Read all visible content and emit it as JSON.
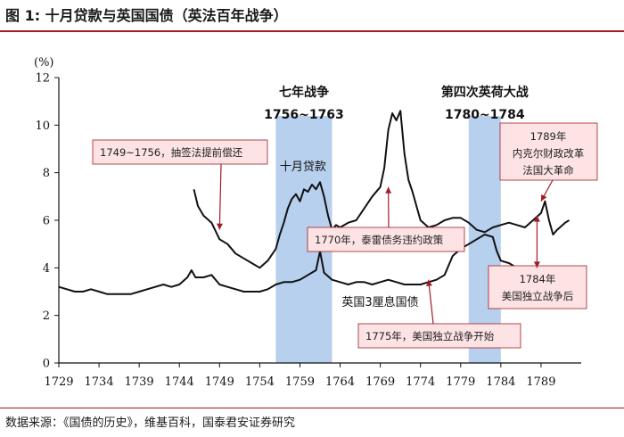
{
  "figure_title": "图 1:  十月贷款与英国国债（英法百年战争）",
  "source": "数据来源：《国债的历史》，维基百科，国泰君安证券研究",
  "colors": {
    "accent": "#a01d26",
    "band": "#aac8ea",
    "note_fill": "#fde3e4",
    "line": "#111111"
  },
  "chart_data": {
    "type": "line",
    "title": "",
    "xlabel": "",
    "ylabel": "(%)",
    "xlim": [
      1729,
      1794
    ],
    "ylim": [
      0,
      12
    ],
    "xticks": [
      1729,
      1734,
      1739,
      1744,
      1749,
      1754,
      1759,
      1764,
      1769,
      1774,
      1779,
      1784,
      1789
    ],
    "yticks": [
      0,
      2,
      4,
      6,
      8,
      10,
      12
    ],
    "war_periods": [
      {
        "name": "七年战争",
        "years": "1756~1763",
        "x0": 1756,
        "x1": 1763
      },
      {
        "name": "第四次英荷大战",
        "years": "1780~1784",
        "x0": 1780,
        "x1": 1784
      }
    ],
    "series": [
      {
        "name": "十月贷款",
        "x": [
          1745.8,
          1746.3,
          1747,
          1748,
          1749,
          1750,
          1751,
          1752,
          1753,
          1754,
          1755,
          1756,
          1756.5,
          1757,
          1757.5,
          1758,
          1758.5,
          1759,
          1759.5,
          1760,
          1760.5,
          1761,
          1761.5,
          1762,
          1762.5,
          1763,
          1763.5,
          1764,
          1765,
          1766,
          1767,
          1768,
          1769,
          1769.5,
          1770,
          1770.5,
          1771,
          1771.5,
          1772,
          1772.5,
          1773,
          1774,
          1775,
          1776,
          1777,
          1778,
          1779,
          1780,
          1781,
          1782,
          1783,
          1784,
          1785,
          1786,
          1787,
          1788,
          1789,
          1789.5,
          1790,
          1790.5,
          1791,
          1792,
          1792.5
        ],
        "values": [
          7.3,
          6.6,
          6.2,
          5.9,
          5.2,
          5.0,
          4.6,
          4.4,
          4.2,
          4.0,
          4.3,
          4.8,
          5.4,
          5.9,
          6.5,
          6.9,
          7.1,
          6.8,
          7.3,
          7.2,
          7.5,
          7.3,
          7.6,
          7.0,
          6.2,
          5.6,
          5.8,
          5.7,
          5.9,
          6.0,
          6.5,
          7.0,
          7.4,
          8.2,
          9.8,
          10.5,
          10.2,
          10.6,
          8.8,
          7.7,
          7.2,
          6.0,
          5.7,
          5.8,
          6.0,
          6.1,
          6.1,
          5.9,
          5.6,
          5.5,
          5.7,
          5.8,
          5.9,
          5.8,
          5.7,
          6.0,
          6.3,
          6.8,
          6.0,
          5.4,
          5.6,
          5.9,
          6.0
        ]
      },
      {
        "name": "英国3厘息国债",
        "x": [
          1729,
          1730,
          1731,
          1732,
          1733,
          1734,
          1735,
          1736,
          1737,
          1738,
          1739,
          1740,
          1741,
          1742,
          1743,
          1744,
          1745,
          1745.5,
          1746,
          1747,
          1748,
          1749,
          1750,
          1751,
          1752,
          1753,
          1754,
          1755,
          1756,
          1757,
          1758,
          1759,
          1760,
          1761,
          1761.5,
          1762,
          1763,
          1764,
          1765,
          1766,
          1767,
          1768,
          1769,
          1770,
          1771,
          1772,
          1773,
          1774,
          1775,
          1776,
          1777,
          1778,
          1779,
          1780,
          1781,
          1782,
          1783,
          1783.5,
          1784,
          1785,
          1786,
          1787,
          1788,
          1789,
          1790,
          1791,
          1792,
          1792.5
        ],
        "values": [
          3.2,
          3.1,
          3.0,
          3.0,
          3.1,
          3.0,
          2.9,
          2.9,
          2.9,
          2.9,
          3.0,
          3.1,
          3.2,
          3.3,
          3.2,
          3.3,
          3.6,
          3.9,
          3.6,
          3.6,
          3.7,
          3.3,
          3.2,
          3.1,
          3.0,
          3.0,
          3.0,
          3.1,
          3.3,
          3.4,
          3.4,
          3.5,
          3.7,
          3.9,
          4.7,
          3.8,
          3.5,
          3.4,
          3.3,
          3.4,
          3.4,
          3.3,
          3.4,
          3.5,
          3.4,
          3.3,
          3.3,
          3.3,
          3.4,
          3.5,
          3.7,
          4.5,
          4.8,
          5.0,
          5.2,
          5.4,
          5.3,
          4.7,
          4.3,
          4.2,
          4.0,
          3.8,
          3.9,
          3.9,
          3.7,
          3.2,
          3.4,
          3.8
        ]
      }
    ],
    "series_labels": [
      {
        "series": "十月贷款",
        "text": "十月贷款",
        "x": 1756.5,
        "y": 8.1
      },
      {
        "series": "英国3厘息国债",
        "text": "英国3厘息国债",
        "x": 1764.2,
        "y": 2.4
      }
    ],
    "annotations": [
      {
        "text": "1749~1756，抽签法提前偿还",
        "target": [
          1749,
          5.6
        ]
      },
      {
        "text": "1770年，泰雷债务违约政策",
        "target": [
          1770,
          7.4
        ]
      },
      {
        "text": "1775年，美国独立战争开始",
        "target": [
          1775,
          3.5
        ]
      },
      {
        "lines": [
          "1789年",
          "内克尔财政改革",
          "法国大革命"
        ],
        "target": [
          1789,
          6.8
        ]
      },
      {
        "lines": [
          "1784年",
          "美国独立战争后"
        ],
        "target": [
          1788.5,
          4.0
        ],
        "target2": [
          1788.5,
          6.2
        ]
      }
    ]
  }
}
